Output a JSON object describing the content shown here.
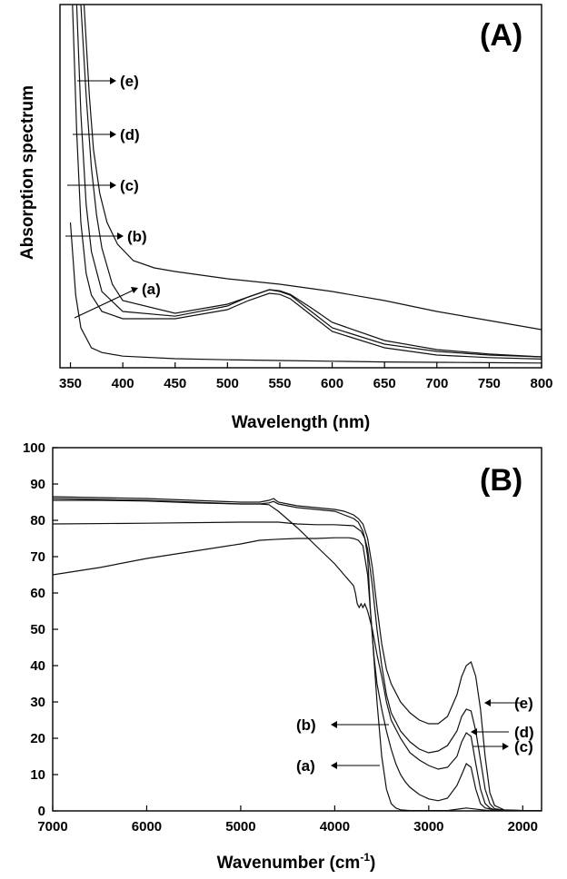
{
  "chart_data": [
    {
      "type": "line",
      "panel_label": "(A)",
      "xlabel": "Wavelength (nm)",
      "ylabel": "Absorption spectrum",
      "xlim": [
        340,
        800
      ],
      "ylim": [
        0,
        10
      ],
      "x_ticks": [
        350,
        400,
        450,
        500,
        550,
        600,
        650,
        700,
        750,
        800
      ],
      "y_ticks": [],
      "grid": false,
      "series": [
        {
          "name": "(a)",
          "x": [
            350,
            355,
            360,
            370,
            380,
            400,
            450,
            500,
            550,
            600,
            650,
            700,
            750,
            800
          ],
          "y": [
            4.0,
            2.0,
            1.1,
            0.55,
            0.42,
            0.32,
            0.25,
            0.22,
            0.2,
            0.18,
            0.16,
            0.15,
            0.14,
            0.13
          ]
        },
        {
          "name": "(b)",
          "x": [
            352,
            356,
            360,
            365,
            370,
            380,
            400,
            450,
            500,
            520,
            540,
            550,
            560,
            580,
            600,
            650,
            700,
            750,
            800
          ],
          "y": [
            10,
            6.5,
            4.0,
            2.6,
            2.0,
            1.55,
            1.35,
            1.35,
            1.6,
            1.85,
            2.05,
            2.02,
            1.9,
            1.45,
            1.0,
            0.55,
            0.35,
            0.28,
            0.24
          ]
        },
        {
          "name": "(c)",
          "x": [
            356,
            360,
            365,
            370,
            380,
            400,
            450,
            500,
            520,
            540,
            550,
            560,
            580,
            600,
            650,
            700,
            750,
            800
          ],
          "y": [
            10,
            7.0,
            4.5,
            3.2,
            2.1,
            1.55,
            1.42,
            1.7,
            1.95,
            2.15,
            2.1,
            2.0,
            1.55,
            1.1,
            0.65,
            0.45,
            0.35,
            0.3
          ]
        },
        {
          "name": "(d)",
          "x": [
            360,
            365,
            370,
            375,
            380,
            390,
            400,
            450,
            500,
            520,
            540,
            550,
            560,
            580,
            600,
            650,
            700,
            750,
            800
          ],
          "y": [
            10,
            7.5,
            5.5,
            4.2,
            3.3,
            2.3,
            1.85,
            1.5,
            1.75,
            1.95,
            2.15,
            2.12,
            2.02,
            1.65,
            1.25,
            0.75,
            0.5,
            0.38,
            0.3
          ]
        },
        {
          "name": "(e)",
          "x": [
            363,
            368,
            372,
            378,
            385,
            395,
            410,
            430,
            450,
            500,
            550,
            600,
            650,
            700,
            750,
            800
          ],
          "y": [
            10,
            7.5,
            6.0,
            4.8,
            4.0,
            3.4,
            2.95,
            2.75,
            2.65,
            2.45,
            2.3,
            2.1,
            1.85,
            1.55,
            1.3,
            1.05
          ]
        }
      ],
      "annotations": [
        "(a)",
        "(b)",
        "(c)",
        "(d)",
        "(e)"
      ]
    },
    {
      "type": "line",
      "panel_label": "(B)",
      "xlabel": "Wavenumber (cm",
      "xlabel_sup": "-1",
      "xlabel_end": ")",
      "ylabel": "",
      "xlim": [
        7000,
        1800
      ],
      "ylim": [
        0,
        100
      ],
      "x_ticks": [
        7000,
        6000,
        5000,
        4000,
        3000,
        2000
      ],
      "y_ticks": [
        0,
        10,
        20,
        30,
        40,
        50,
        60,
        70,
        80,
        90,
        100
      ],
      "grid": false,
      "series": [
        {
          "name": "(a)",
          "x": [
            7000,
            6500,
            6000,
            5500,
            5000,
            4800,
            4600,
            4400,
            4200,
            4000,
            3850,
            3800,
            3750,
            3700,
            3650,
            3600,
            3550,
            3500,
            3450,
            3400,
            3350,
            3300,
            3250,
            3200,
            3100,
            3000,
            2800,
            2600,
            2400,
            2200,
            2000,
            1800
          ],
          "y": [
            65,
            67,
            69.5,
            71.5,
            73.5,
            74.5,
            74.8,
            75,
            75,
            75.2,
            75.2,
            75,
            74.5,
            73,
            65,
            48,
            30,
            15,
            6,
            2,
            0.8,
            0.3,
            0.2,
            0.1,
            0.1,
            0.1,
            0.1,
            0.8,
            0.2,
            0.1,
            0.1,
            0.1
          ]
        },
        {
          "name": "(b)",
          "x": [
            7000,
            6000,
            5000,
            4800,
            4600,
            4400,
            4200,
            4000,
            3800,
            3720,
            3680,
            3650,
            3620,
            3580,
            3550,
            3500,
            3450,
            3400,
            3350,
            3300,
            3250,
            3200,
            3100,
            3000,
            2900,
            2800,
            2700,
            2650,
            2600,
            2550,
            2500,
            2450,
            2400,
            2300,
            2200,
            2100,
            2000,
            1800
          ],
          "y": [
            79,
            79.2,
            79.5,
            79.5,
            79.5,
            79,
            78.8,
            78.8,
            78.5,
            77,
            75,
            70,
            55,
            42,
            35,
            28,
            22,
            17,
            13,
            10,
            8,
            6.5,
            4.5,
            3.3,
            2.8,
            3.5,
            7,
            10,
            13,
            12,
            6,
            2,
            0.8,
            0.3,
            0.2,
            0.1,
            0.1,
            0.1
          ]
        },
        {
          "name": "(c)",
          "x": [
            7000,
            6500,
            6000,
            5500,
            5000,
            4800,
            4700,
            4600,
            4400,
            4200,
            4000,
            3900,
            3800,
            3780,
            3760,
            3740,
            3720,
            3700,
            3680,
            3650,
            3600,
            3550,
            3500,
            3450,
            3400,
            3300,
            3200,
            3100,
            3000,
            2900,
            2800,
            2700,
            2650,
            2600,
            2550,
            2500,
            2450,
            2400,
            2350,
            2300,
            2200,
            2000,
            1800
          ],
          "y": [
            85.5,
            85.5,
            85.3,
            84.8,
            84.5,
            84.5,
            84.3,
            82.5,
            78,
            73,
            68,
            65,
            62,
            60,
            57,
            56,
            57,
            56,
            57,
            55,
            50,
            43,
            37,
            30,
            25,
            20,
            16,
            14,
            12.5,
            11.5,
            12,
            15,
            19,
            21.5,
            20.5,
            13,
            6,
            2,
            0.8,
            0.3,
            0.2,
            0.1,
            0.1
          ]
        },
        {
          "name": "(d)",
          "x": [
            7000,
            6000,
            5000,
            4800,
            4700,
            4650,
            4600,
            4400,
            4200,
            4000,
            3900,
            3800,
            3750,
            3700,
            3650,
            3600,
            3550,
            3500,
            3450,
            3400,
            3300,
            3200,
            3100,
            3000,
            2900,
            2800,
            2700,
            2650,
            2600,
            2550,
            2500,
            2450,
            2400,
            2350,
            2300,
            2200,
            2000,
            1800
          ],
          "y": [
            86,
            85.5,
            84.5,
            84.5,
            84.8,
            85.2,
            84.5,
            83.5,
            83,
            82.5,
            81.5,
            80.5,
            79.5,
            77,
            72,
            62,
            50,
            40,
            32,
            27,
            22,
            19,
            17,
            16,
            16.5,
            18,
            22,
            26,
            28,
            27.5,
            22,
            14,
            6,
            2,
            0.6,
            0.2,
            0.1,
            0.1
          ]
        },
        {
          "name": "(e)",
          "x": [
            7000,
            6000,
            5000,
            4800,
            4700,
            4650,
            4600,
            4400,
            4200,
            4000,
            3900,
            3800,
            3750,
            3700,
            3650,
            3600,
            3550,
            3500,
            3450,
            3400,
            3300,
            3200,
            3100,
            3000,
            2900,
            2800,
            2700,
            2650,
            2600,
            2550,
            2500,
            2450,
            2400,
            2350,
            2300,
            2200,
            2000,
            1800
          ],
          "y": [
            86.5,
            86,
            85,
            85,
            85.5,
            86,
            85,
            84,
            83.5,
            83,
            82.5,
            81.5,
            80.5,
            79,
            75,
            67,
            56,
            46,
            39,
            35,
            30,
            27,
            25,
            24,
            24,
            26,
            32,
            37,
            40,
            41,
            37,
            28,
            15,
            5,
            1.5,
            0.3,
            0.1,
            0.1
          ]
        }
      ],
      "annotations": [
        "(a)",
        "(b)",
        "(c)",
        "(d)",
        "(e)"
      ]
    }
  ]
}
